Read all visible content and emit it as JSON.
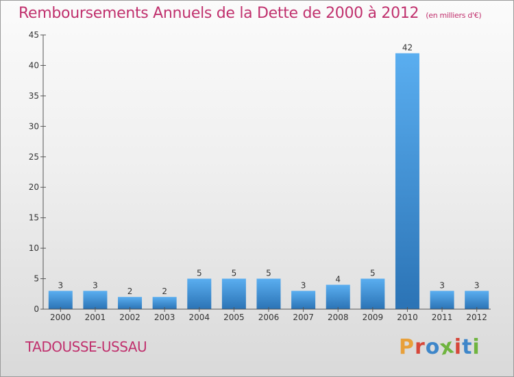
{
  "header": {
    "title": "Remboursements Annuels de la Dette de 2000 à 2012",
    "unit": "(en milliers d'€)"
  },
  "footer": {
    "commune": "TADOUSSE-USSAU",
    "brand": "Proxiti",
    "brand_colors": [
      "#e8a03a",
      "#d6473a",
      "#3e86c9",
      "#6fb43f",
      "#d6473a",
      "#3e86c9",
      "#6fb43f"
    ]
  },
  "colors": {
    "accent": "#c0306d",
    "bar_top": "#5aaef0",
    "bar_bottom": "#2b73b5",
    "axis": "#555555"
  },
  "chart_data": {
    "type": "bar",
    "categories": [
      "2000",
      "2001",
      "2002",
      "2003",
      "2004",
      "2005",
      "2006",
      "2007",
      "2008",
      "2009",
      "2010",
      "2011",
      "2012"
    ],
    "values": [
      3,
      3,
      2,
      2,
      5,
      5,
      5,
      3,
      4,
      5,
      42,
      3,
      3
    ],
    "title": "Remboursements Annuels de la Dette de 2000 à 2012",
    "subtitle": "(en milliers d'€)",
    "xlabel": "",
    "ylabel": "",
    "ylim": [
      0,
      45
    ],
    "yticks": [
      0,
      5,
      10,
      15,
      20,
      25,
      30,
      35,
      40,
      45
    ],
    "grid": false,
    "legend": "none",
    "data_labels": true
  }
}
